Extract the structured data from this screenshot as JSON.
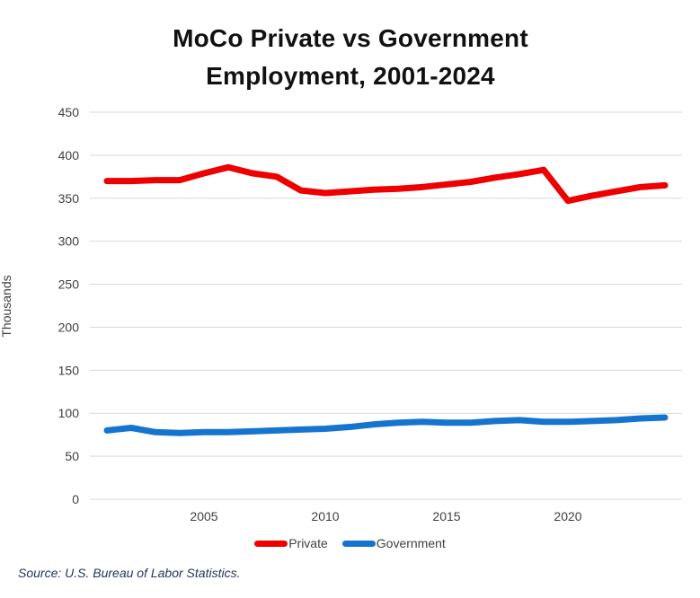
{
  "title": "MoCo Private vs Government Employment, 2001-2024",
  "y_axis_title": "Thousands",
  "source_note": "Source: U.S. Bureau of Labor Statistics.",
  "colors": {
    "private_line": "#EE0000",
    "government_line": "#1575CE",
    "gridline": "#D9D9D9",
    "tick_text": "#404040",
    "title_text": "#111111",
    "source_text": "#22365A"
  },
  "legend": {
    "items": [
      {
        "label": "Private",
        "color": "#EE0000"
      },
      {
        "label": "Government",
        "color": "#1575CE"
      }
    ]
  },
  "chart_data": {
    "type": "line",
    "title": "MoCo Private vs Government Employment, 2001-2024",
    "xlabel": "",
    "ylabel": "Thousands",
    "x": [
      2001,
      2002,
      2003,
      2004,
      2005,
      2006,
      2007,
      2008,
      2009,
      2010,
      2011,
      2012,
      2013,
      2014,
      2015,
      2016,
      2017,
      2018,
      2019,
      2020,
      2021,
      2022,
      2023,
      2024
    ],
    "series": [
      {
        "name": "Private",
        "color": "#EE0000",
        "values": [
          370,
          370,
          371,
          371,
          379,
          386,
          379,
          375,
          359,
          356,
          358,
          360,
          361,
          363,
          366,
          369,
          374,
          378,
          383,
          347,
          353,
          358,
          363,
          365
        ]
      },
      {
        "name": "Government",
        "color": "#1575CE",
        "values": [
          80,
          83,
          78,
          77,
          78,
          78,
          79,
          80,
          81,
          82,
          84,
          87,
          89,
          90,
          89,
          89,
          91,
          92,
          90,
          90,
          91,
          92,
          94,
          95
        ]
      }
    ],
    "ylim": [
      0,
      450
    ],
    "yticks": [
      0,
      50,
      100,
      150,
      200,
      250,
      300,
      350,
      400,
      450
    ],
    "xticks": [
      2005,
      2010,
      2015,
      2020
    ],
    "grid": true,
    "legend_position": "bottom"
  }
}
